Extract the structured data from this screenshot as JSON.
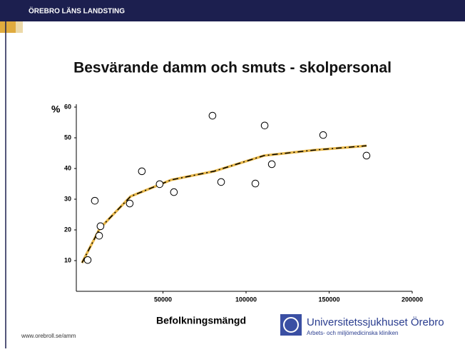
{
  "header": {
    "organization": "ÖREBRO LÄNS LANDSTING"
  },
  "footer": {
    "url": "www.orebroll.se/amm",
    "logo_title": "Universitetssjukhuset Örebro",
    "logo_subtitle": "Arbets- och miljömedicinska kliniken"
  },
  "chart_data": {
    "type": "scatter",
    "title": "Besvärande damm och smuts - skolpersonal",
    "y_label": "%",
    "x_label": "Befolkningsmängd",
    "x": [
      4700,
      9000,
      12400,
      11600,
      30000,
      37300,
      48000,
      56600,
      79800,
      85000,
      105600,
      111200,
      115500,
      146400,
      172500
    ],
    "values": [
      10.2,
      29.5,
      21.2,
      18.1,
      28.6,
      39.1,
      34.9,
      32.3,
      57.2,
      35.6,
      35.1,
      54,
      41.4,
      50.9,
      44.2
    ],
    "trend": {
      "x": [
        1300,
        12000,
        30500,
        55000,
        80700,
        110800,
        140800,
        172500
      ],
      "values": [
        9.3,
        20.5,
        30.9,
        36.3,
        39.1,
        44.2,
        46.0,
        47.4
      ],
      "color": "#e8b84a"
    },
    "xlim": [
      0,
      200000
    ],
    "xticks": [
      50000,
      100000,
      150000,
      200000
    ],
    "ylim": [
      0,
      60
    ],
    "yticks": [
      10,
      20,
      30,
      40,
      50,
      60
    ]
  }
}
